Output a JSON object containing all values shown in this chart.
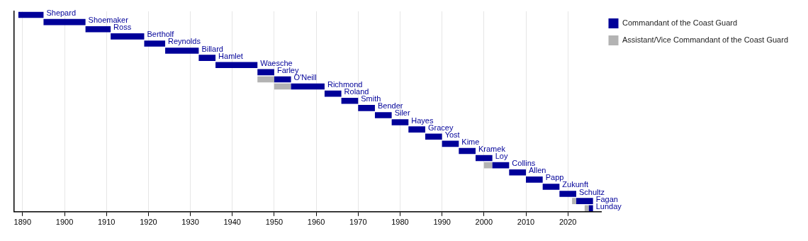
{
  "chart_data": {
    "type": "bar",
    "orientation": "horizontal",
    "categories": [
      "Shepard",
      "Shoemaker",
      "Ross",
      "Bertholf",
      "Reynolds",
      "Billard",
      "Hamlet",
      "Waesche",
      "Farley",
      "O'Neill",
      "Richmond",
      "Roland",
      "Smith",
      "Bender",
      "Siler",
      "Hayes",
      "Gracey",
      "Yost",
      "Kime",
      "Kramek",
      "Loy",
      "Collins",
      "Allen",
      "Papp",
      "Zukunft",
      "Schultz",
      "Fagan",
      "Lunday"
    ],
    "series": [
      {
        "name": "Commandant of the Coast Guard",
        "color": "#000099",
        "base": [
          1889,
          1895,
          1905,
          1911,
          1919,
          1924,
          1932,
          1936,
          1946,
          1950,
          1954,
          1962,
          1966,
          1970,
          1974,
          1978,
          1982,
          1986,
          1990,
          1994,
          1998,
          2002,
          2006,
          2010,
          2014,
          2018,
          2022,
          2025
        ],
        "values": [
          6,
          10,
          6,
          8,
          5,
          8,
          4,
          10,
          4,
          4,
          8,
          4,
          4,
          4,
          4,
          4,
          4,
          4,
          4,
          4,
          4,
          4,
          4,
          4,
          4,
          4,
          4,
          1
        ]
      },
      {
        "name": "Assistant/Vice Commandant of the Coast Guard",
        "color": "#b3b3b3",
        "base": [
          null,
          null,
          null,
          null,
          null,
          null,
          null,
          null,
          null,
          1946,
          1950,
          null,
          null,
          null,
          null,
          null,
          null,
          null,
          null,
          null,
          null,
          2000,
          null,
          null,
          null,
          null,
          2021,
          2024
        ],
        "values": [
          null,
          null,
          null,
          null,
          null,
          null,
          null,
          null,
          null,
          4,
          4,
          null,
          null,
          null,
          null,
          null,
          null,
          null,
          null,
          null,
          null,
          2,
          null,
          null,
          null,
          null,
          1,
          1
        ]
      }
    ],
    "xlim": [
      1888,
      2028
    ],
    "xticks": [
      1890,
      1900,
      1910,
      1920,
      1930,
      1940,
      1950,
      1960,
      1970,
      1980,
      1990,
      2000,
      2010,
      2020
    ],
    "grid": "x",
    "legend": "top right"
  }
}
